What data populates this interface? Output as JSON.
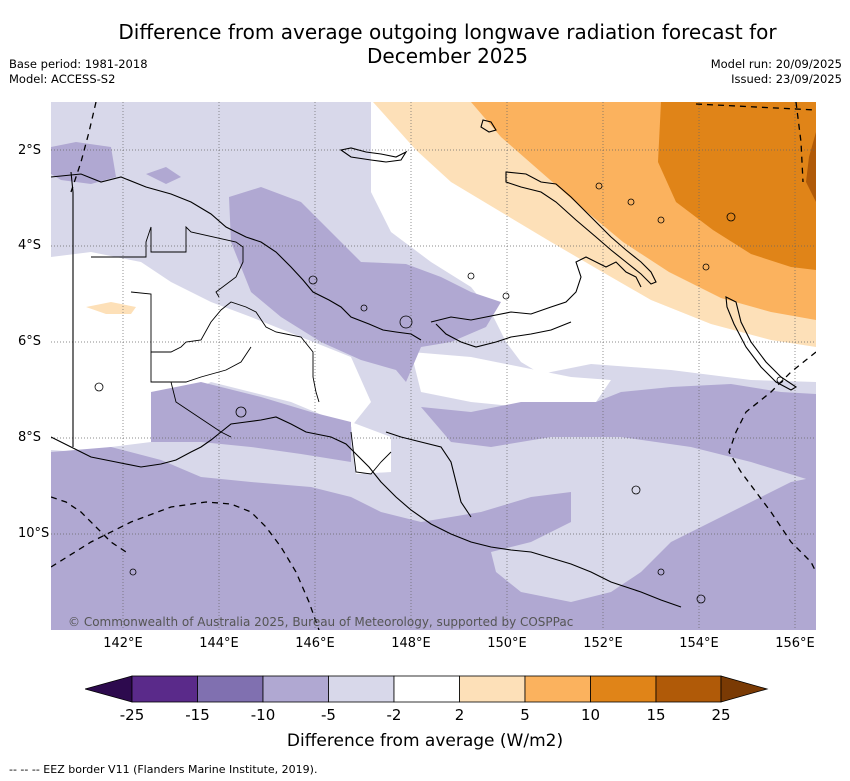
{
  "title": "Difference from average outgoing longwave radiation forecast for December 2025",
  "meta": {
    "base_period": "Base period: 1981-2018",
    "model": "Model: ACCESS-S2",
    "model_run": "Model run: 20/09/2025",
    "issued": "Issued: 23/09/2025"
  },
  "map": {
    "copyright": "© Commonwealth of Australia 2025, Bureau of Meteorology, supported by COSPPac",
    "lat_labels": [
      "2°S",
      "4°S",
      "6°S",
      "8°S",
      "10°S"
    ],
    "lon_labels": [
      "142°E",
      "144°E",
      "146°E",
      "148°E",
      "150°E",
      "152°E",
      "154°E",
      "156°E"
    ],
    "extent": {
      "lon_min": 140.5,
      "lon_max": 156.5,
      "lat_min": -12.0,
      "lat_max": -1.0
    }
  },
  "colorbar": {
    "title": "Difference from average (W/m2)",
    "labels": [
      "-25",
      "-15",
      "-10",
      "-5",
      "-2",
      "2",
      "5",
      "10",
      "15",
      "25"
    ],
    "colors": [
      "#2d0a4e",
      "#5a2a8a",
      "#8070b0",
      "#b0a8d2",
      "#d8d8ea",
      "#ffffff",
      "#fde0b8",
      "#fbb25e",
      "#e08418",
      "#b05a08",
      "#7a3a04"
    ]
  },
  "footnote": "-- --  -- EEZ border V11 (Flanders Marine Institute, 2019)."
}
